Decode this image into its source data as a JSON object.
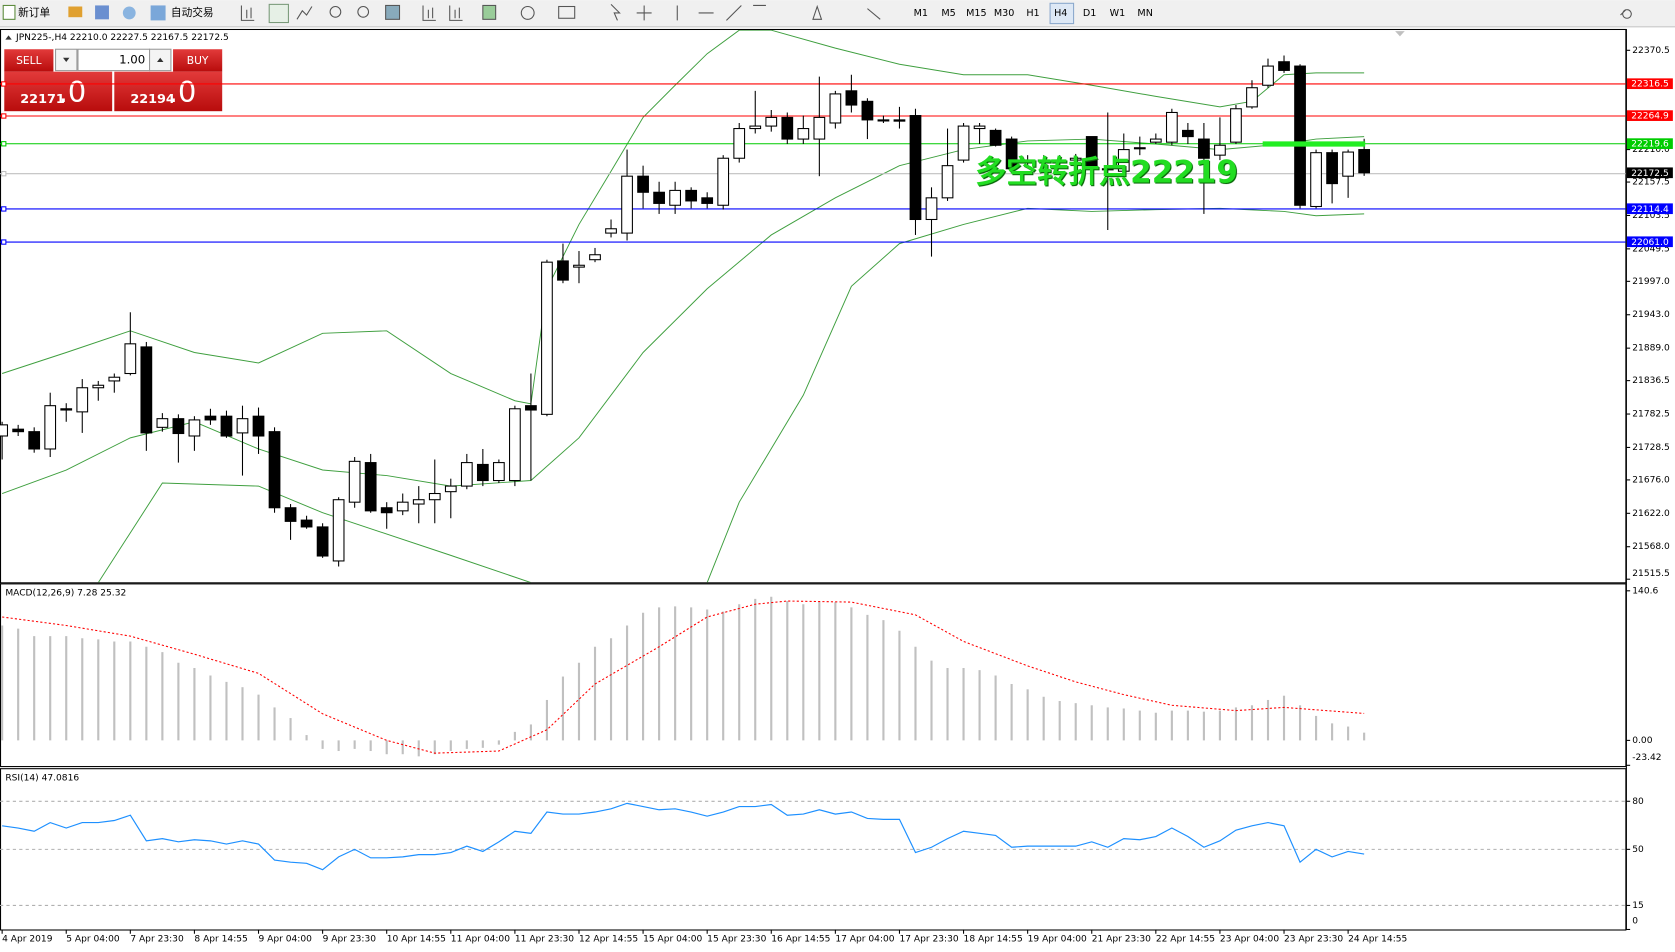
{
  "toolbar": {
    "new_order": "新订单",
    "auto_trading": "自动交易",
    "timeframes": [
      "M1",
      "M5",
      "M15",
      "M30",
      "H1",
      "H4",
      "D1",
      "W1",
      "MN"
    ]
  },
  "trade_panel": {
    "sell": "SELL",
    "buy": "BUY",
    "lots": "1.00",
    "sell_price": "22171",
    "sell_fraction": ".0",
    "buy_price": "22194",
    "buy_fraction": ".0"
  },
  "time_axis": [
    "4 Apr 2019",
    "5 Apr 04:00",
    "7 Apr 23:30",
    "8 Apr 14:55",
    "9 Apr 04:00",
    "9 Apr 23:30",
    "10 Apr 14:55",
    "11 Apr 04:00",
    "11 Apr 23:30",
    "12 Apr 14:55",
    "15 Apr 04:00",
    "15 Apr 23:30",
    "16 Apr 14:55",
    "17 Apr 04:00",
    "17 Apr 23:30",
    "18 Apr 14:55",
    "19 Apr 04:00",
    "21 Apr 23:30",
    "22 Apr 14:55",
    "23 Apr 04:00",
    "23 Apr 23:30",
    "24 Apr 14:55"
  ],
  "chart_data": [
    {
      "type": "candlestick",
      "title": "JPN225-,H4  22210.0 22227.5 22167.5 22172.5",
      "open": [
        21747,
        21758,
        21754,
        21726,
        21791,
        21786,
        21825,
        21836,
        21848,
        21891,
        21761,
        21775,
        21747,
        21779,
        21779,
        21752,
        21779,
        21754,
        21631,
        21611,
        21600,
        21545,
        21640,
        21704,
        21631,
        21626,
        21637,
        21644,
        21657,
        21666,
        21701,
        21675,
        21675,
        21796,
        21782,
        22030,
        22020,
        22032,
        22075,
        22075,
        22167,
        22141,
        22120,
        22144,
        22132,
        22120,
        22196,
        22244,
        22248,
        22262,
        22227,
        22227,
        22253,
        22305,
        22288,
        22258,
        22258,
        22265,
        22097,
        22132,
        22193,
        22244,
        22241,
        22227,
        22193,
        22193,
        22193,
        22193,
        22231,
        22179,
        22175,
        22213,
        22222,
        22222,
        22241,
        22227,
        22201,
        22222,
        22279,
        22314,
        22352,
        22345,
        22118,
        22205,
        22167,
        22210
      ],
      "high": [
        21770,
        21765,
        21761,
        21817,
        21800,
        21839,
        21836,
        21848,
        21947,
        21899,
        21784,
        21782,
        21779,
        21791,
        21788,
        21796,
        21793,
        21761,
        21637,
        21618,
        21606,
        21648,
        21713,
        21718,
        21640,
        21654,
        21666,
        21709,
        21678,
        21718,
        21726,
        21709,
        21796,
        21848,
        22032,
        22058,
        22046,
        22051,
        22097,
        22210,
        22184,
        22158,
        22158,
        22149,
        22141,
        22201,
        22253,
        22305,
        22274,
        22270,
        22265,
        22328,
        22305,
        22331,
        22293,
        22265,
        22279,
        22276,
        22149,
        22244,
        22253,
        22253,
        22244,
        22231,
        22201,
        22201,
        22201,
        22203,
        22231,
        22270,
        22236,
        22231,
        22236,
        22276,
        22253,
        22253,
        22262,
        22282,
        22322,
        22357,
        22362,
        22348,
        22210,
        22210,
        22210,
        22227.5
      ],
      "low": [
        21709,
        21747,
        21720,
        21713,
        21770,
        21752,
        21804,
        21817,
        21845,
        21723,
        21754,
        21704,
        21723,
        21765,
        21744,
        21683,
        21718,
        21623,
        21579,
        21597,
        21550,
        21536,
        21631,
        21623,
        21597,
        21619,
        21606,
        21606,
        21614,
        21661,
        21666,
        21671,
        21666,
        21675,
        21779,
        21994,
        21994,
        22028,
        22068,
        22063,
        22115,
        22106,
        22106,
        22115,
        22115,
        22113,
        22189,
        22236,
        22239,
        22219,
        22219,
        22167,
        22244,
        22270,
        22227,
        22253,
        22244,
        22072,
        22037,
        22127,
        22189,
        22219,
        22215,
        22175,
        22184,
        22184,
        22179,
        22184,
        22167,
        22080,
        22167,
        22201,
        22219,
        22217,
        22219,
        22106,
        22193,
        22219,
        22276,
        22310,
        22334,
        22115,
        22115,
        22123,
        22132,
        22167.5
      ],
      "close": [
        21765,
        21754,
        21726,
        21796,
        21789,
        21825,
        21829,
        21842,
        21896,
        21752,
        21775,
        21751,
        21773,
        21773,
        21747,
        21775,
        21747,
        21631,
        21609,
        21600,
        21553,
        21644,
        21706,
        21626,
        21623,
        21640,
        21644,
        21654,
        21666,
        21704,
        21675,
        21704,
        21791,
        21789,
        22028,
        21999,
        22023,
        22040,
        22082,
        22167,
        22141,
        22123,
        22144,
        22127,
        22123,
        22196,
        22244,
        22248,
        22262,
        22227,
        22244,
        22262,
        22300,
        22282,
        22258,
        22258,
        22256,
        22097,
        22132,
        22184,
        22248,
        22248,
        22217,
        22179,
        22193,
        22193,
        22189,
        22196,
        22179,
        22179,
        22210,
        22213,
        22227,
        22270,
        22231,
        22196,
        22217,
        22276,
        22310,
        22345,
        22338,
        22120,
        22205,
        22155,
        22206,
        22172.5
      ],
      "bands": [
        {
          "color": "#3f9f3f",
          "x": [
            0,
            4,
            8,
            12,
            16,
            20,
            24,
            28,
            32,
            33,
            34,
            36,
            38,
            40,
            42,
            44,
            46,
            48,
            52,
            56,
            60,
            64,
            68,
            72,
            76,
            78,
            80,
            82,
            85
          ],
          "values": [
            21848,
            21882,
            21917,
            21882,
            21865,
            21913,
            21917,
            21848,
            21804,
            21799,
            21985,
            22089,
            22175,
            22262,
            22314,
            22365,
            22403,
            22403,
            22374,
            22348,
            22331,
            22331,
            22314,
            22296,
            22279,
            22288,
            22331,
            22334,
            22334
          ]
        },
        {
          "color": "#3f9f3f",
          "x": [
            0,
            4,
            8,
            12,
            16,
            20,
            24,
            28,
            33,
            36,
            40,
            44,
            48,
            52,
            56,
            60,
            64,
            68,
            72,
            76,
            80,
            82,
            85
          ],
          "values": [
            21654,
            21692,
            21744,
            21770,
            21726,
            21692,
            21683,
            21666,
            21675,
            21744,
            21882,
            21985,
            22072,
            22132,
            22184,
            22210,
            22224,
            22227,
            22219,
            22210,
            22219,
            22227,
            22231
          ]
        },
        {
          "color": "#3f9f3f",
          "x": [
            6,
            10,
            16,
            20,
            28,
            33,
            38,
            44,
            46,
            50,
            53,
            56,
            60,
            64,
            68,
            72,
            76,
            80,
            82,
            85
          ],
          "values": [
            21510,
            21671,
            21666,
            21623,
            21554,
            21510,
            null,
            21510,
            21640,
            21813,
            21989,
            22058,
            22089,
            22115,
            22110,
            22113,
            22115,
            22110,
            22103,
            22106
          ]
        }
      ],
      "levels": [
        {
          "value": 22316.5,
          "color": "#ff0000",
          "box_color": "#ff0000"
        },
        {
          "value": 22264.9,
          "color": "#ff0000",
          "box_color": "#ff0000"
        },
        {
          "value": 22219.6,
          "color": "#00cc00",
          "box_color": "#00cc00"
        },
        {
          "value": 22172.5,
          "color": "#c0c0c0",
          "box_color": "#000000"
        },
        {
          "value": 22114.4,
          "color": "#0000ff",
          "box_color": "#0000ff"
        },
        {
          "value": 22061,
          "label": "22061.0",
          "color": "#0000ff",
          "box_color": "#0000ff"
        }
      ],
      "marker": {
        "value": 22219,
        "x": [
          79,
          85
        ],
        "color": "#22ee22"
      },
      "annotation": "多空转折点22219",
      "ylim": [
        21510.5,
        22403.3
      ],
      "yticks": [
        22370.5,
        {
          "value": 22210,
          "label": "22210.0"
        },
        22157.5,
        22103.5,
        22049.5,
        {
          "value": 21997,
          "label": "21997.0"
        },
        {
          "value": 21943,
          "label": "21943.0"
        },
        {
          "value": 21889,
          "label": "21889.0"
        },
        21836.5,
        21782.5,
        21728.5,
        {
          "value": 21676,
          "label": "21676.0"
        },
        {
          "value": 21622,
          "label": "21622.0"
        },
        {
          "value": 21568,
          "label": "21568.0"
        },
        21515.5
      ]
    },
    {
      "type": "bar",
      "title": "MACD(12,26,9) 7.28 25.32",
      "color": "#c0c0c0",
      "values": [
        108,
        105,
        98,
        98,
        98,
        96,
        95,
        93,
        93,
        88,
        83,
        73,
        68,
        61,
        55,
        50,
        43,
        31,
        21,
        5,
        -8,
        -10,
        -8,
        -10,
        -13,
        -13,
        -15,
        -13,
        -10,
        -8,
        -7,
        -4,
        8,
        15,
        38,
        60,
        73,
        88,
        96,
        108,
        120,
        125,
        126,
        125,
        123,
        121,
        128,
        133,
        135,
        131,
        128,
        130,
        130,
        125,
        118,
        113,
        103,
        88,
        75,
        68,
        68,
        66,
        61,
        53,
        48,
        41,
        37,
        35,
        33,
        31,
        30,
        28,
        26,
        28,
        28,
        27,
        28,
        31,
        33,
        38,
        42,
        33,
        23,
        16,
        13,
        7.28
      ],
      "signal": {
        "color": "#ff0000",
        "x": [
          0,
          4,
          8,
          12,
          16,
          20,
          24,
          27,
          31,
          34,
          37,
          41,
          44,
          47,
          49,
          53,
          57,
          60,
          64,
          67,
          70,
          73,
          77,
          80,
          85
        ],
        "values": [
          116,
          108,
          98,
          81,
          63,
          25,
          0,
          -12,
          -10,
          10,
          53,
          88,
          116,
          128,
          131,
          130,
          118,
          93,
          70,
          55,
          43,
          33,
          28,
          31,
          25.32
        ]
      },
      "ylim": [
        -24.1,
        146.6
      ],
      "yticks": [
        140.6,
        {
          "value": 0,
          "label": "0.00"
        },
        -23.42
      ]
    },
    {
      "type": "line",
      "title": "RSI(14) 47.0816",
      "color": "#1e90ff",
      "values": [
        64.7,
        63.3,
        61.3,
        66.7,
        63.3,
        66.7,
        66.7,
        68,
        71.3,
        55.3,
        56.7,
        54.7,
        56,
        55.3,
        53.3,
        55.3,
        53.3,
        43.3,
        42,
        41.3,
        37.3,
        45.3,
        50,
        44.7,
        44.7,
        45.3,
        46.7,
        46.7,
        48,
        52,
        48.7,
        54.7,
        61.3,
        60,
        73.3,
        72,
        72,
        73.3,
        75.3,
        78.7,
        76.7,
        74.7,
        75.3,
        73.3,
        70.7,
        73.3,
        76.7,
        76.7,
        78,
        71.3,
        72,
        74.7,
        72,
        73.3,
        69.3,
        68.7,
        68.7,
        48,
        51.3,
        56.7,
        61.3,
        60,
        58.7,
        51.3,
        52,
        52,
        52,
        52,
        54.7,
        51.3,
        56.7,
        56,
        58,
        63.3,
        58,
        51.3,
        55.3,
        62,
        64.7,
        66.7,
        64.7,
        42,
        50,
        45.3,
        48.7,
        47.0816
      ],
      "ylim": [
        0,
        100
      ],
      "yticks": [
        80,
        50,
        15,
        0
      ],
      "grid": true
    }
  ]
}
